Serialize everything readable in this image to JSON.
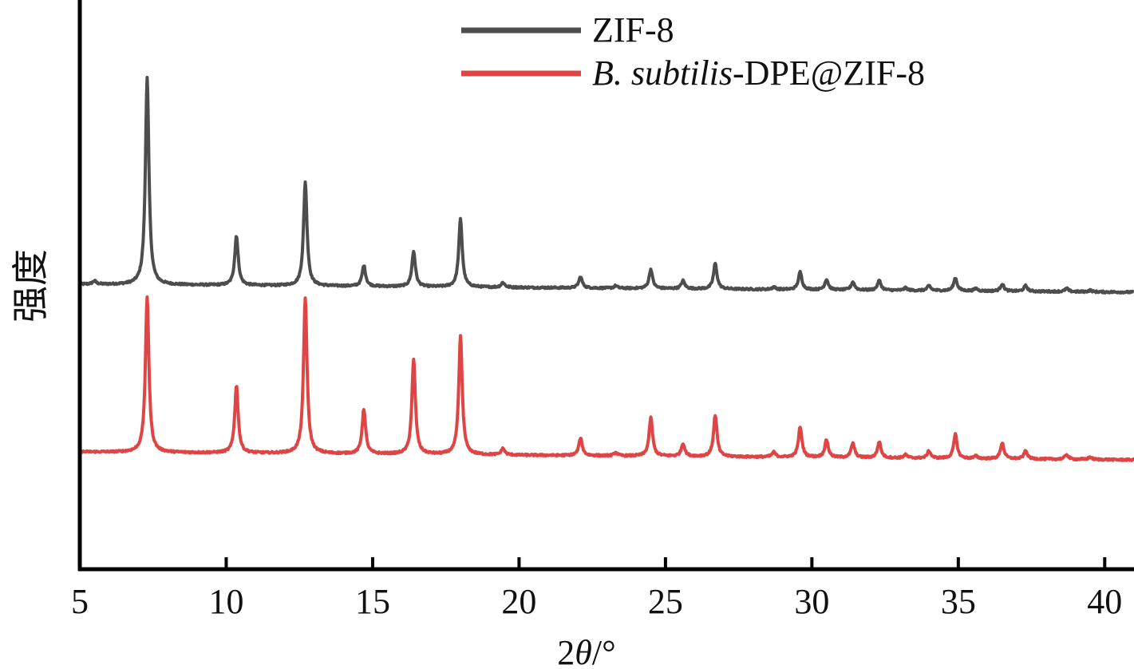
{
  "chart_data": {
    "type": "line",
    "title": "",
    "xlabel": "2θ/°",
    "ylabel": "强度",
    "xlim": [
      5,
      41
    ],
    "xticks": [
      "5",
      "10",
      "15",
      "20",
      "25",
      "30",
      "35",
      "40"
    ],
    "yticks": [],
    "grid": false,
    "legend_position": "top-right",
    "series": [
      {
        "name": "ZIF-8",
        "color": "#4d4d4d",
        "peaks": [
          [
            5.5,
            4
          ],
          [
            7.3,
            260
          ],
          [
            10.35,
            62
          ],
          [
            12.7,
            130
          ],
          [
            14.7,
            26
          ],
          [
            16.4,
            44
          ],
          [
            18.0,
            85
          ],
          [
            19.45,
            6
          ],
          [
            22.1,
            14
          ],
          [
            23.3,
            3
          ],
          [
            24.5,
            24
          ],
          [
            25.6,
            10
          ],
          [
            26.7,
            32
          ],
          [
            28.7,
            3
          ],
          [
            29.6,
            22
          ],
          [
            30.5,
            13
          ],
          [
            31.4,
            10
          ],
          [
            32.3,
            12
          ],
          [
            33.2,
            3
          ],
          [
            34.0,
            6
          ],
          [
            34.9,
            16
          ],
          [
            35.6,
            3
          ],
          [
            36.5,
            9
          ],
          [
            37.3,
            7
          ],
          [
            38.7,
            4
          ],
          [
            39.5,
            2
          ]
        ],
        "baseline_start": 0,
        "baseline_end": -10
      },
      {
        "name": "B. subtilis-DPE@ZIF-8",
        "color": "#e04545",
        "peaks": [
          [
            7.3,
            195
          ],
          [
            10.35,
            84
          ],
          [
            12.7,
            195
          ],
          [
            14.7,
            56
          ],
          [
            16.4,
            118
          ],
          [
            18.0,
            148
          ],
          [
            19.45,
            8
          ],
          [
            22.1,
            22
          ],
          [
            23.3,
            4
          ],
          [
            24.5,
            48
          ],
          [
            25.6,
            16
          ],
          [
            26.7,
            52
          ],
          [
            28.7,
            6
          ],
          [
            29.6,
            38
          ],
          [
            30.5,
            22
          ],
          [
            31.4,
            18
          ],
          [
            32.3,
            20
          ],
          [
            33.2,
            4
          ],
          [
            34.0,
            9
          ],
          [
            34.9,
            30
          ],
          [
            35.6,
            3
          ],
          [
            36.5,
            20
          ],
          [
            37.3,
            10
          ],
          [
            38.7,
            6
          ],
          [
            39.5,
            3
          ]
        ],
        "baseline_start": 0,
        "baseline_end": -10
      }
    ]
  },
  "legend": [
    {
      "prefix_italic": "",
      "text": "ZIF-8",
      "color": "#4d4d4d"
    },
    {
      "prefix_italic": "B. subtilis",
      "text": "-DPE@ZIF-8",
      "color": "#e04545"
    }
  ],
  "xaxis_title": {
    "prefix": "2",
    "symbol": "θ",
    "suffix": "/°"
  }
}
